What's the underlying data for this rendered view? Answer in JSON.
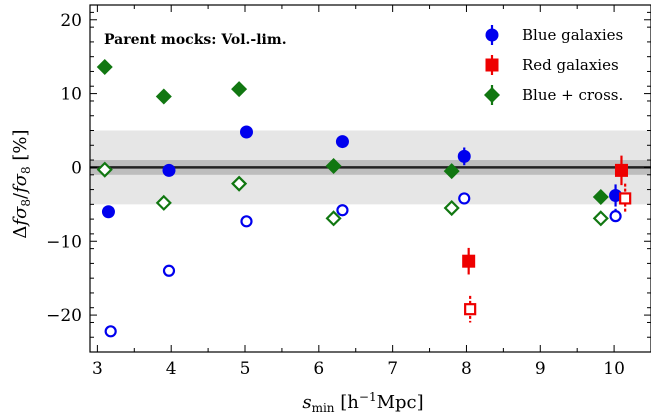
{
  "chart_data": {
    "type": "scatter",
    "annotation": "Parent mocks: Vol.-lim.",
    "xlabel": "s_min [h^-1Mpc]",
    "ylabel": "Δfσ8/fσ8 [%]",
    "xlim": [
      2.9,
      10.5
    ],
    "ylim": [
      -25,
      22
    ],
    "xticks": [
      3,
      4,
      5,
      6,
      7,
      8,
      9,
      10
    ],
    "yticks": [
      -20,
      -10,
      0,
      10,
      20
    ],
    "xtick_labels": [
      "3",
      "4",
      "5",
      "6",
      "7",
      "8",
      "9",
      "10"
    ],
    "ytick_labels": [
      "−20",
      "−10",
      "0",
      "10",
      "20"
    ],
    "band": {
      "y_low": -5,
      "y_high": 5,
      "color": "#e6e6e6"
    },
    "inner_band": {
      "y_low": -1,
      "y_high": 1,
      "color": "#bdbdbd"
    },
    "reference_line": {
      "y": 0,
      "color": "#222222"
    },
    "colors": {
      "blue": "#0000ee",
      "red": "#ee0000",
      "green": "#117711"
    },
    "legend": {
      "placement": "top-right",
      "entries": [
        {
          "label": "Blue galaxies",
          "marker": "circle",
          "color": "#0000ee"
        },
        {
          "label": "Red galaxies",
          "marker": "square",
          "color": "#ee0000"
        },
        {
          "label": "Blue + cross.",
          "marker": "diamond",
          "color": "#117711"
        }
      ]
    },
    "series": [
      {
        "name": "Blue galaxies",
        "marker": "circle",
        "fill": "filled",
        "color": "#0000ee",
        "points": [
          {
            "x": 3.15,
            "y": -6.0,
            "err": 0.5
          },
          {
            "x": 3.97,
            "y": -0.4,
            "err": 0.5
          },
          {
            "x": 5.02,
            "y": 4.8,
            "err": 0.5
          },
          {
            "x": 6.32,
            "y": 3.5,
            "err": 0.5
          },
          {
            "x": 7.97,
            "y": 1.5,
            "err": 1.2
          },
          {
            "x": 10.02,
            "y": -3.8,
            "err": 1.5
          }
        ]
      },
      {
        "name": "Blue galaxies (open)",
        "marker": "circle",
        "fill": "open",
        "color": "#0000ee",
        "points": [
          {
            "x": 3.18,
            "y": -22.2,
            "err": 0.6
          },
          {
            "x": 3.97,
            "y": -14.0,
            "err": 0.6
          },
          {
            "x": 5.02,
            "y": -7.3,
            "err": 0.6
          },
          {
            "x": 6.32,
            "y": -5.8,
            "err": 0.6
          },
          {
            "x": 7.97,
            "y": -4.2,
            "err": 0.8
          },
          {
            "x": 10.02,
            "y": -6.6,
            "err": 1.0
          }
        ]
      },
      {
        "name": "Red galaxies",
        "marker": "square",
        "fill": "filled",
        "color": "#ee0000",
        "points": [
          {
            "x": 8.03,
            "y": -12.7,
            "err": 1.8
          },
          {
            "x": 10.1,
            "y": -0.4,
            "err": 2.0
          }
        ]
      },
      {
        "name": "Red galaxies (open)",
        "marker": "square",
        "fill": "open",
        "color": "#ee0000",
        "points": [
          {
            "x": 8.05,
            "y": -19.2,
            "err": 1.8
          },
          {
            "x": 10.15,
            "y": -4.2,
            "err": 2.0
          }
        ]
      },
      {
        "name": "Blue + cross.",
        "marker": "diamond",
        "fill": "filled",
        "color": "#117711",
        "points": [
          {
            "x": 3.1,
            "y": 13.6,
            "err": 0.4
          },
          {
            "x": 3.9,
            "y": 9.6,
            "err": 0.4
          },
          {
            "x": 4.92,
            "y": 10.6,
            "err": 0.4
          },
          {
            "x": 6.2,
            "y": 0.2,
            "err": 0.4
          },
          {
            "x": 7.8,
            "y": -0.5,
            "err": 0.6
          },
          {
            "x": 9.82,
            "y": -4.0,
            "err": 0.8
          }
        ]
      },
      {
        "name": "Blue + cross. (open)",
        "marker": "diamond",
        "fill": "open",
        "color": "#117711",
        "points": [
          {
            "x": 3.1,
            "y": -0.3,
            "err": 0.4
          },
          {
            "x": 3.9,
            "y": -4.8,
            "err": 0.4
          },
          {
            "x": 4.92,
            "y": -2.2,
            "err": 0.4
          },
          {
            "x": 6.2,
            "y": -6.9,
            "err": 0.4
          },
          {
            "x": 7.8,
            "y": -5.5,
            "err": 0.6
          },
          {
            "x": 9.82,
            "y": -6.9,
            "err": 0.8
          }
        ]
      }
    ]
  }
}
